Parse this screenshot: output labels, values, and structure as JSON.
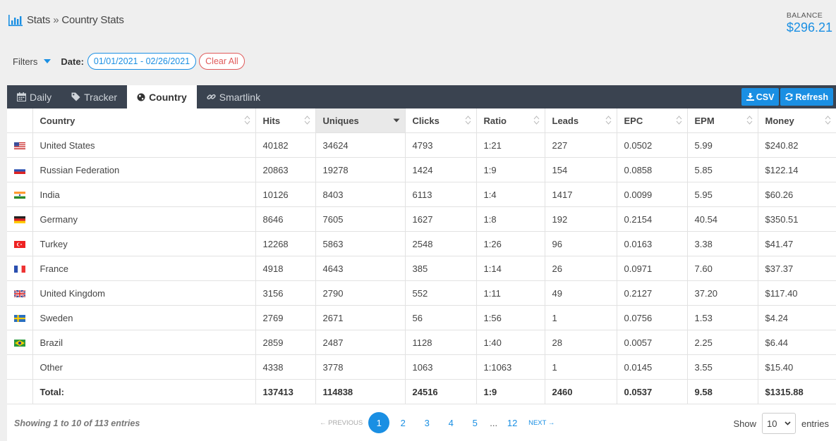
{
  "breadcrumb": {
    "root": "Stats",
    "separator": "»",
    "current": "Country Stats"
  },
  "balance": {
    "label": "BALANCE",
    "amount": "$296.21"
  },
  "filters": {
    "label": "Filters",
    "date_label": "Date:",
    "date_range": "01/01/2021 - 02/26/2021",
    "clear_label": "Clear All"
  },
  "tabs": [
    {
      "label": "Daily",
      "icon": "calendar-icon"
    },
    {
      "label": "Tracker",
      "icon": "tag-icon"
    },
    {
      "label": "Country",
      "icon": "globe-icon",
      "active": true
    },
    {
      "label": "Smartlink",
      "icon": "link-icon"
    }
  ],
  "actions": {
    "csv": "CSV",
    "refresh": "Refresh"
  },
  "table": {
    "columns": [
      "Country",
      "Hits",
      "Uniques",
      "Clicks",
      "Ratio",
      "Leads",
      "EPC",
      "EPM",
      "Money"
    ],
    "sorted_column": "Uniques",
    "rows": [
      {
        "flag": "us",
        "cells": [
          "United States",
          "40182",
          "34624",
          "4793",
          "1:21",
          "227",
          "0.0502",
          "5.99",
          "$240.82"
        ]
      },
      {
        "flag": "ru",
        "cells": [
          "Russian Federation",
          "20863",
          "19278",
          "1424",
          "1:9",
          "154",
          "0.0858",
          "5.85",
          "$122.14"
        ]
      },
      {
        "flag": "in",
        "cells": [
          "India",
          "10126",
          "8403",
          "6113",
          "1:4",
          "1417",
          "0.0099",
          "5.95",
          "$60.26"
        ]
      },
      {
        "flag": "de",
        "cells": [
          "Germany",
          "8646",
          "7605",
          "1627",
          "1:8",
          "192",
          "0.2154",
          "40.54",
          "$350.51"
        ]
      },
      {
        "flag": "tr",
        "cells": [
          "Turkey",
          "12268",
          "5863",
          "2548",
          "1:26",
          "96",
          "0.0163",
          "3.38",
          "$41.47"
        ]
      },
      {
        "flag": "fr",
        "cells": [
          "France",
          "4918",
          "4643",
          "385",
          "1:14",
          "26",
          "0.0971",
          "7.60",
          "$37.37"
        ]
      },
      {
        "flag": "gb",
        "cells": [
          "United Kingdom",
          "3156",
          "2790",
          "552",
          "1:11",
          "49",
          "0.2127",
          "37.20",
          "$117.40"
        ]
      },
      {
        "flag": "se",
        "cells": [
          "Sweden",
          "2769",
          "2671",
          "56",
          "1:56",
          "1",
          "0.0756",
          "1.53",
          "$4.24"
        ]
      },
      {
        "flag": "br",
        "cells": [
          "Brazil",
          "2859",
          "2487",
          "1128",
          "1:40",
          "28",
          "0.0057",
          "2.25",
          "$6.44"
        ]
      },
      {
        "flag": "",
        "cells": [
          "Other",
          "4338",
          "3778",
          "1063",
          "1:1063",
          "1",
          "0.0145",
          "3.55",
          "$15.40"
        ]
      }
    ],
    "total": [
      "Total:",
      "137413",
      "114838",
      "24516",
      "1:9",
      "2460",
      "0.0537",
      "9.58",
      "$1315.88"
    ]
  },
  "footer": {
    "info": "Showing 1 to 10 of 113 entries",
    "prev": "← PREVIOUS",
    "next": "NEXT →",
    "pages": [
      "1",
      "2",
      "3",
      "4",
      "5"
    ],
    "ellipsis": "...",
    "last_page": "12",
    "show_label": "Show",
    "page_size": "10",
    "entries_label": "entries"
  },
  "colors": {
    "accent": "#1a8fe3",
    "tabbar": "#3a4350",
    "danger": "#e05a5a"
  }
}
